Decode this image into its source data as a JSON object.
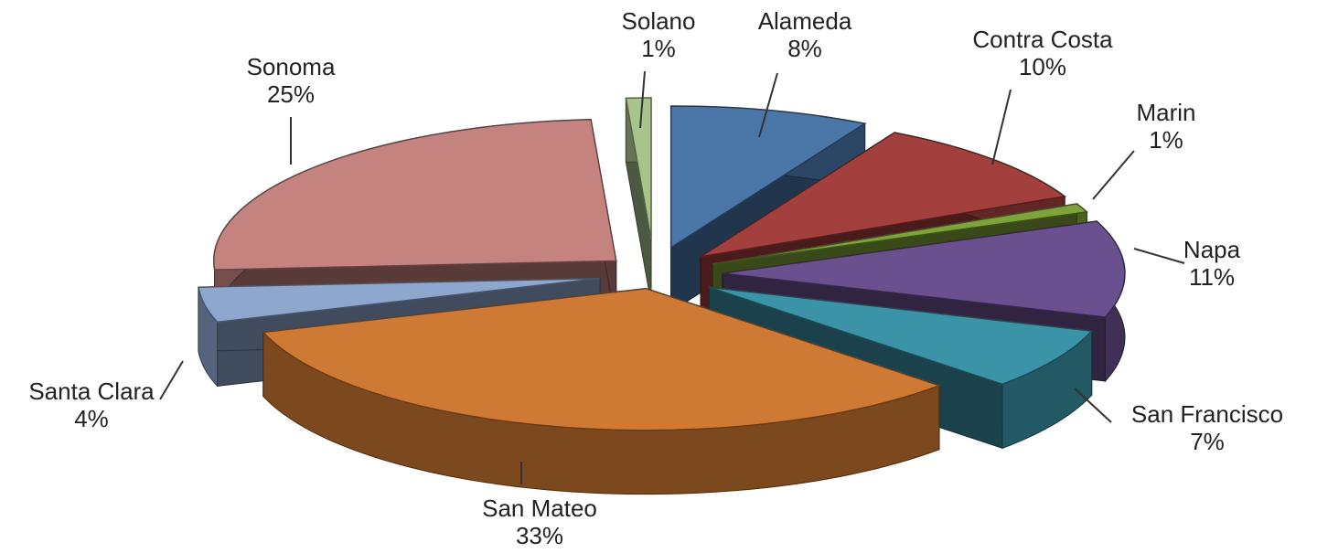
{
  "chart_data": {
    "type": "pie",
    "title": "",
    "style": "3d-exploded",
    "categories": [
      "Alameda",
      "Contra Costa",
      "Marin",
      "Napa",
      "San Francisco",
      "San Mateo",
      "Santa Clara",
      "Sonoma",
      "Solano"
    ],
    "values": [
      8,
      10,
      1,
      11,
      7,
      33,
      4,
      25,
      1
    ],
    "value_labels": [
      "8%",
      "10%",
      "1%",
      "11%",
      "7%",
      "33%",
      "4%",
      "25%",
      "1%"
    ],
    "colors": [
      "#4a76a8",
      "#a33f3d",
      "#7ea33a",
      "#6a508e",
      "#3b93a8",
      "#cf7a34",
      "#8ea7cf",
      "#c4837f",
      "#a8c38c"
    ],
    "legend": "none"
  }
}
